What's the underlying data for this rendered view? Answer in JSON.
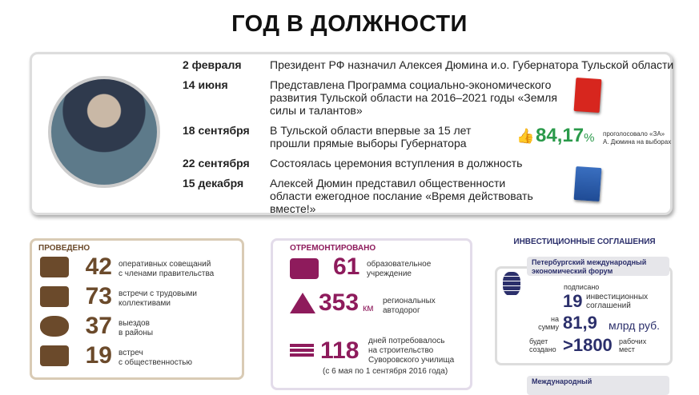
{
  "title": "ГОД В ДОЛЖНОСТИ",
  "timeline": [
    {
      "date": "2 февраля",
      "text": "Президент РФ назначил Алексея Дюмина и.о. Губернатора Тульской области"
    },
    {
      "date": "14 июня",
      "text": "Представлена Программа социально-экономического развития Тульской области на 2016–2021 годы «Земля силы и талантов»"
    },
    {
      "date": "18 сентября",
      "text": "В Тульской области впервые за 15 лет прошли прямые выборы Губернатора"
    },
    {
      "date": "22 сентября",
      "text": "Состоялась церемония вступления в должность"
    },
    {
      "date": "15 декабря",
      "text": "Алексей Дюмин представил общественности области ежегодное послание «Время действовать вместе!»"
    }
  ],
  "vote": {
    "value": "84,17",
    "unit": "%",
    "caption1": "проголосовало «ЗА»",
    "caption2": "А. Дюмина на выборах",
    "icon": "thumbs-up-icon",
    "color": "#2a9a4a"
  },
  "held": {
    "heading": "ПРОВЕДЕНО",
    "color": "#6b4a2b",
    "items": [
      {
        "value": "42",
        "text1": "оперативных совещаний",
        "text2": "с членами правительства",
        "icon": "meeting-table-icon"
      },
      {
        "value": "73",
        "text1": "встречи с трудовыми",
        "text2": "коллективами",
        "icon": "workers-icon"
      },
      {
        "value": "37",
        "text1": "выездов",
        "text2": "в районы",
        "icon": "region-map-icon"
      },
      {
        "value": "19",
        "text1": "встреч",
        "text2": "с общественностью",
        "icon": "audience-icon"
      }
    ]
  },
  "repaired": {
    "heading": "ОТРЕМОНТИРОВАНО",
    "color": "#8e1b5c",
    "items": [
      {
        "value": "61",
        "unit": "",
        "text1": "образовательное",
        "text2": "учреждение",
        "icon": "building-repair-icon"
      },
      {
        "value": "353",
        "unit": "км",
        "text1": "региональных",
        "text2": "автодорог",
        "icon": "road-icon"
      },
      {
        "value": "118",
        "unit": "",
        "text1": "дней потребовалось",
        "text2": "на строительство",
        "text3": "Суворовского училища",
        "note": "(с 6 мая по 1 сентября 2016 года)",
        "icon": "brick-wall-icon"
      }
    ]
  },
  "invest": {
    "heading": "ИНВЕСТИЦИОННЫЕ СОГЛАШЕНИЯ",
    "color": "#2b2f6b",
    "forum": "Петербургский международный экономический форум",
    "signed": "подписано",
    "count": "19",
    "count_text1": "инвестиционных",
    "count_text2": "соглашений",
    "sum_pre1": "на",
    "sum_pre2": "сумму",
    "sum": "81,9",
    "sum_unit": "млрд руб.",
    "jobs_pre1": "будет",
    "jobs_pre2": "создано",
    "jobs": ">1800",
    "jobs_text1": "рабочих",
    "jobs_text2": "мест",
    "forum2": "Международный"
  }
}
